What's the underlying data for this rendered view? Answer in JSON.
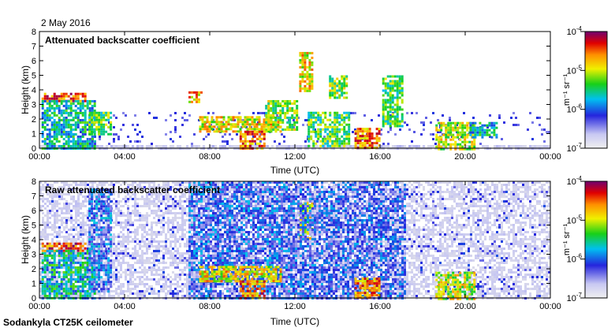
{
  "date_label": "2 May 2016",
  "footer_label": "Sodankyla CT25K ceilometer",
  "colorbar_unit": "m⁻¹ sr⁻¹",
  "chart_data": [
    {
      "type": "heatmap",
      "title": "Attenuated backscatter coefficient",
      "xlabel": "Time (UTC)",
      "ylabel": "Height (km)",
      "xlim_hours": [
        0,
        24
      ],
      "ylim_km": [
        0,
        8
      ],
      "xticks": [
        "00:00",
        "04:00",
        "08:00",
        "12:00",
        "16:00",
        "20:00",
        "00:00"
      ],
      "yticks": [
        "0",
        "1",
        "2",
        "3",
        "4",
        "5",
        "6",
        "7",
        "8"
      ],
      "colorbar": {
        "scale": "log",
        "range": [
          1e-07,
          0.0001
        ],
        "ticks": [
          {
            "base": "10",
            "exp": "-7"
          },
          {
            "base": "10",
            "exp": "-6"
          },
          {
            "base": "10",
            "exp": "-5"
          },
          {
            "base": "10",
            "exp": "-4"
          }
        ]
      },
      "features": [
        {
          "t": [
            0.1,
            2.2
          ],
          "h": [
            3.3,
            3.8
          ],
          "level": 0.85
        },
        {
          "t": [
            0.1,
            2.6
          ],
          "h": [
            0.0,
            3.3
          ],
          "level": 0.45
        },
        {
          "t": [
            2.3,
            3.4
          ],
          "h": [
            1.0,
            2.5
          ],
          "level": 0.55
        },
        {
          "t": [
            7.0,
            7.6
          ],
          "h": [
            3.2,
            3.9
          ],
          "level": 0.75
        },
        {
          "t": [
            7.5,
            11.3
          ],
          "h": [
            1.2,
            2.2
          ],
          "level": 0.7
        },
        {
          "t": [
            9.4,
            10.6
          ],
          "h": [
            0.0,
            1.2
          ],
          "level": 0.8
        },
        {
          "t": [
            10.6,
            12.1
          ],
          "h": [
            1.2,
            3.3
          ],
          "level": 0.6
        },
        {
          "t": [
            12.2,
            12.8
          ],
          "h": [
            4.0,
            6.6
          ],
          "level": 0.7
        },
        {
          "t": [
            13.6,
            14.4
          ],
          "h": [
            3.5,
            5.0
          ],
          "level": 0.6
        },
        {
          "t": [
            12.6,
            14.6
          ],
          "h": [
            0.2,
            2.5
          ],
          "level": 0.55
        },
        {
          "t": [
            14.8,
            16.0
          ],
          "h": [
            0.0,
            1.4
          ],
          "level": 0.8
        },
        {
          "t": [
            16.1,
            17.0
          ],
          "h": [
            1.5,
            5.0
          ],
          "level": 0.55
        },
        {
          "t": [
            18.6,
            20.4
          ],
          "h": [
            0.0,
            1.8
          ],
          "level": 0.65
        },
        {
          "t": [
            20.2,
            21.5
          ],
          "h": [
            0.8,
            1.8
          ],
          "level": 0.45
        }
      ]
    },
    {
      "type": "heatmap",
      "title": "Raw attenuated backscatter coefficient",
      "xlabel": "Time (UTC)",
      "ylabel": "Height (km)",
      "xlim_hours": [
        0,
        24
      ],
      "ylim_km": [
        0,
        8
      ],
      "xticks": [
        "00:00",
        "04:00",
        "08:00",
        "12:00",
        "16:00",
        "20:00",
        "00:00"
      ],
      "yticks": [
        "0",
        "1",
        "2",
        "3",
        "4",
        "5",
        "6",
        "7",
        "8"
      ],
      "colorbar": {
        "scale": "log",
        "range": [
          1e-07,
          0.0001
        ],
        "ticks": [
          {
            "base": "10",
            "exp": "-7"
          },
          {
            "base": "10",
            "exp": "-6"
          },
          {
            "base": "10",
            "exp": "-5"
          },
          {
            "base": "10",
            "exp": "-4"
          }
        ]
      },
      "features": [
        {
          "t": [
            0.1,
            2.2
          ],
          "h": [
            3.3,
            3.8
          ],
          "level": 0.85
        },
        {
          "t": [
            0.1,
            2.6
          ],
          "h": [
            0.0,
            3.3
          ],
          "level": 0.45
        },
        {
          "t": [
            2.3,
            3.4
          ],
          "h": [
            0.5,
            7.5
          ],
          "level": 0.3
        },
        {
          "t": [
            7.0,
            12.0
          ],
          "h": [
            0.0,
            8.0
          ],
          "level": 0.28
        },
        {
          "t": [
            7.5,
            11.3
          ],
          "h": [
            1.2,
            2.2
          ],
          "level": 0.7
        },
        {
          "t": [
            9.4,
            10.6
          ],
          "h": [
            0.0,
            1.2
          ],
          "level": 0.8
        },
        {
          "t": [
            12.2,
            12.8
          ],
          "h": [
            4.0,
            6.6
          ],
          "level": 0.65
        },
        {
          "t": [
            12.0,
            17.2
          ],
          "h": [
            0.0,
            8.0
          ],
          "level": 0.26
        },
        {
          "t": [
            14.8,
            16.0
          ],
          "h": [
            0.0,
            1.4
          ],
          "level": 0.8
        },
        {
          "t": [
            18.6,
            20.4
          ],
          "h": [
            0.0,
            1.8
          ],
          "level": 0.65
        }
      ]
    }
  ]
}
